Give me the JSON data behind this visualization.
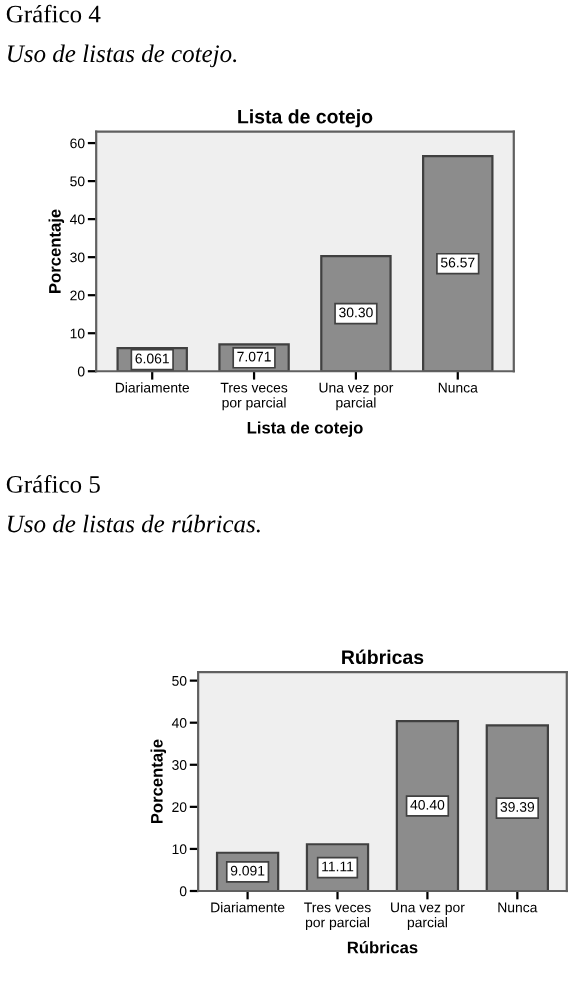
{
  "chart_data": [
    {
      "type": "bar",
      "title": "Lista de cotejo",
      "xlabel": "Lista de cotejo",
      "ylabel": "Porcentaje",
      "annotations": [
        "Gráfico 4",
        "Uso de listas de cotejo."
      ],
      "categories": [
        "Diariamente",
        "Tres veces\npor parcial",
        "Una vez por\nparcial",
        "Nunca"
      ],
      "values": [
        6.061,
        7.071,
        30.3,
        56.57
      ],
      "value_labels": [
        "6.061",
        "7.071",
        "30.30",
        "56.57"
      ],
      "color": "#8c8c8c",
      "ylim": [
        0,
        63
      ],
      "yticks": [
        0,
        10,
        20,
        30,
        40,
        50,
        60
      ],
      "grid": false,
      "legend": false
    },
    {
      "type": "bar",
      "title": "Rúbricas",
      "xlabel": "Rúbricas",
      "ylabel": "Porcentaje",
      "annotations": [
        "Gráfico 5",
        "Uso de listas de rúbricas."
      ],
      "categories": [
        "Diariamente",
        "Tres veces\npor parcial",
        "Una vez por\nparcial",
        "Nunca"
      ],
      "values": [
        9.091,
        11.11,
        40.4,
        39.39
      ],
      "value_labels": [
        "9.091",
        "11.11",
        "40.40",
        "39.39"
      ],
      "color": "#8c8c8c",
      "ylim": [
        0,
        52
      ],
      "yticks": [
        0,
        10,
        20,
        30,
        40,
        50
      ],
      "grid": false,
      "legend": false
    }
  ]
}
